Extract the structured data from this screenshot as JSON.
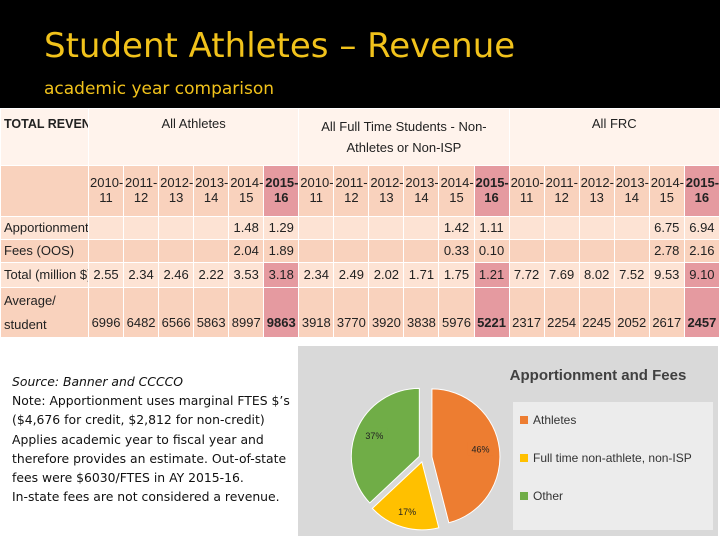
{
  "slide": {
    "title": "Student Athletes – Revenue",
    "subtitle": "academic year comparison"
  },
  "table": {
    "corner_label": "TOTAL REVENUE",
    "groups": [
      {
        "label": "All Athletes"
      },
      {
        "label": "All Full Time Students - Non-Athletes or Non-ISP"
      },
      {
        "label": "All FRC"
      }
    ],
    "years": [
      {
        "top": "2010-",
        "bottom": "11"
      },
      {
        "top": "2011-",
        "bottom": "12"
      },
      {
        "top": "2012-",
        "bottom": "13"
      },
      {
        "top": "2013-",
        "bottom": "14"
      },
      {
        "top": "2014-",
        "bottom": "15"
      },
      {
        "top": "2015-",
        "bottom": "16"
      }
    ],
    "rows": [
      {
        "label": "Apportionment",
        "values": [
          "",
          "",
          "",
          "",
          "1.48",
          "1.29",
          "",
          "",
          "",
          "",
          "1.42",
          "1.11",
          "",
          "",
          "",
          "",
          "6.75",
          "6.94"
        ]
      },
      {
        "label": "Fees (OOS)",
        "values": [
          "",
          "",
          "",
          "",
          "2.04",
          "1.89",
          "",
          "",
          "",
          "",
          "0.33",
          "0.10",
          "",
          "",
          "",
          "",
          "2.78",
          "2.16"
        ]
      },
      {
        "label": "Total (million $)",
        "values": [
          "2.55",
          "2.34",
          "2.46",
          "2.22",
          "3.53",
          "3.18",
          "2.34",
          "2.49",
          "2.02",
          "1.71",
          "1.75",
          "1.21",
          "7.72",
          "7.69",
          "8.02",
          "7.52",
          "9.53",
          "9.10"
        ]
      },
      {
        "label_top": "Average/",
        "label_bottom": "student",
        "values": [
          "6996",
          "6482",
          "6566",
          "5863",
          "8997",
          "9863",
          "3918",
          "3770",
          "3920",
          "3838",
          "5976",
          "5221",
          "2317",
          "2254",
          "2245",
          "2052",
          "2617",
          "2457"
        ]
      }
    ]
  },
  "notes": {
    "line1": "Source: Banner and CCCCO",
    "line2": "Note: Apportionment uses marginal FTES $’s ($4,676 for credit, $2,812 for non-credit)",
    "line3": "Applies academic year to fiscal year and therefore provides an estimate. Out-of-state fees were $6030/FTES in AY 2015-16.",
    "line4": "In-state fees are not considered a revenue."
  },
  "chart_data": {
    "type": "pie",
    "title": "Apportionment and Fees",
    "slices": [
      {
        "name": "Athletes",
        "value": 46,
        "label": "46%",
        "color": "#ed7d31"
      },
      {
        "name": "Full time non-athlete, non-ISP",
        "value": 17,
        "label": "17%",
        "color": "#ffc000"
      },
      {
        "name": "Other",
        "value": 37,
        "label": "37%",
        "color": "#70ad47"
      }
    ],
    "legend_position": "right"
  }
}
